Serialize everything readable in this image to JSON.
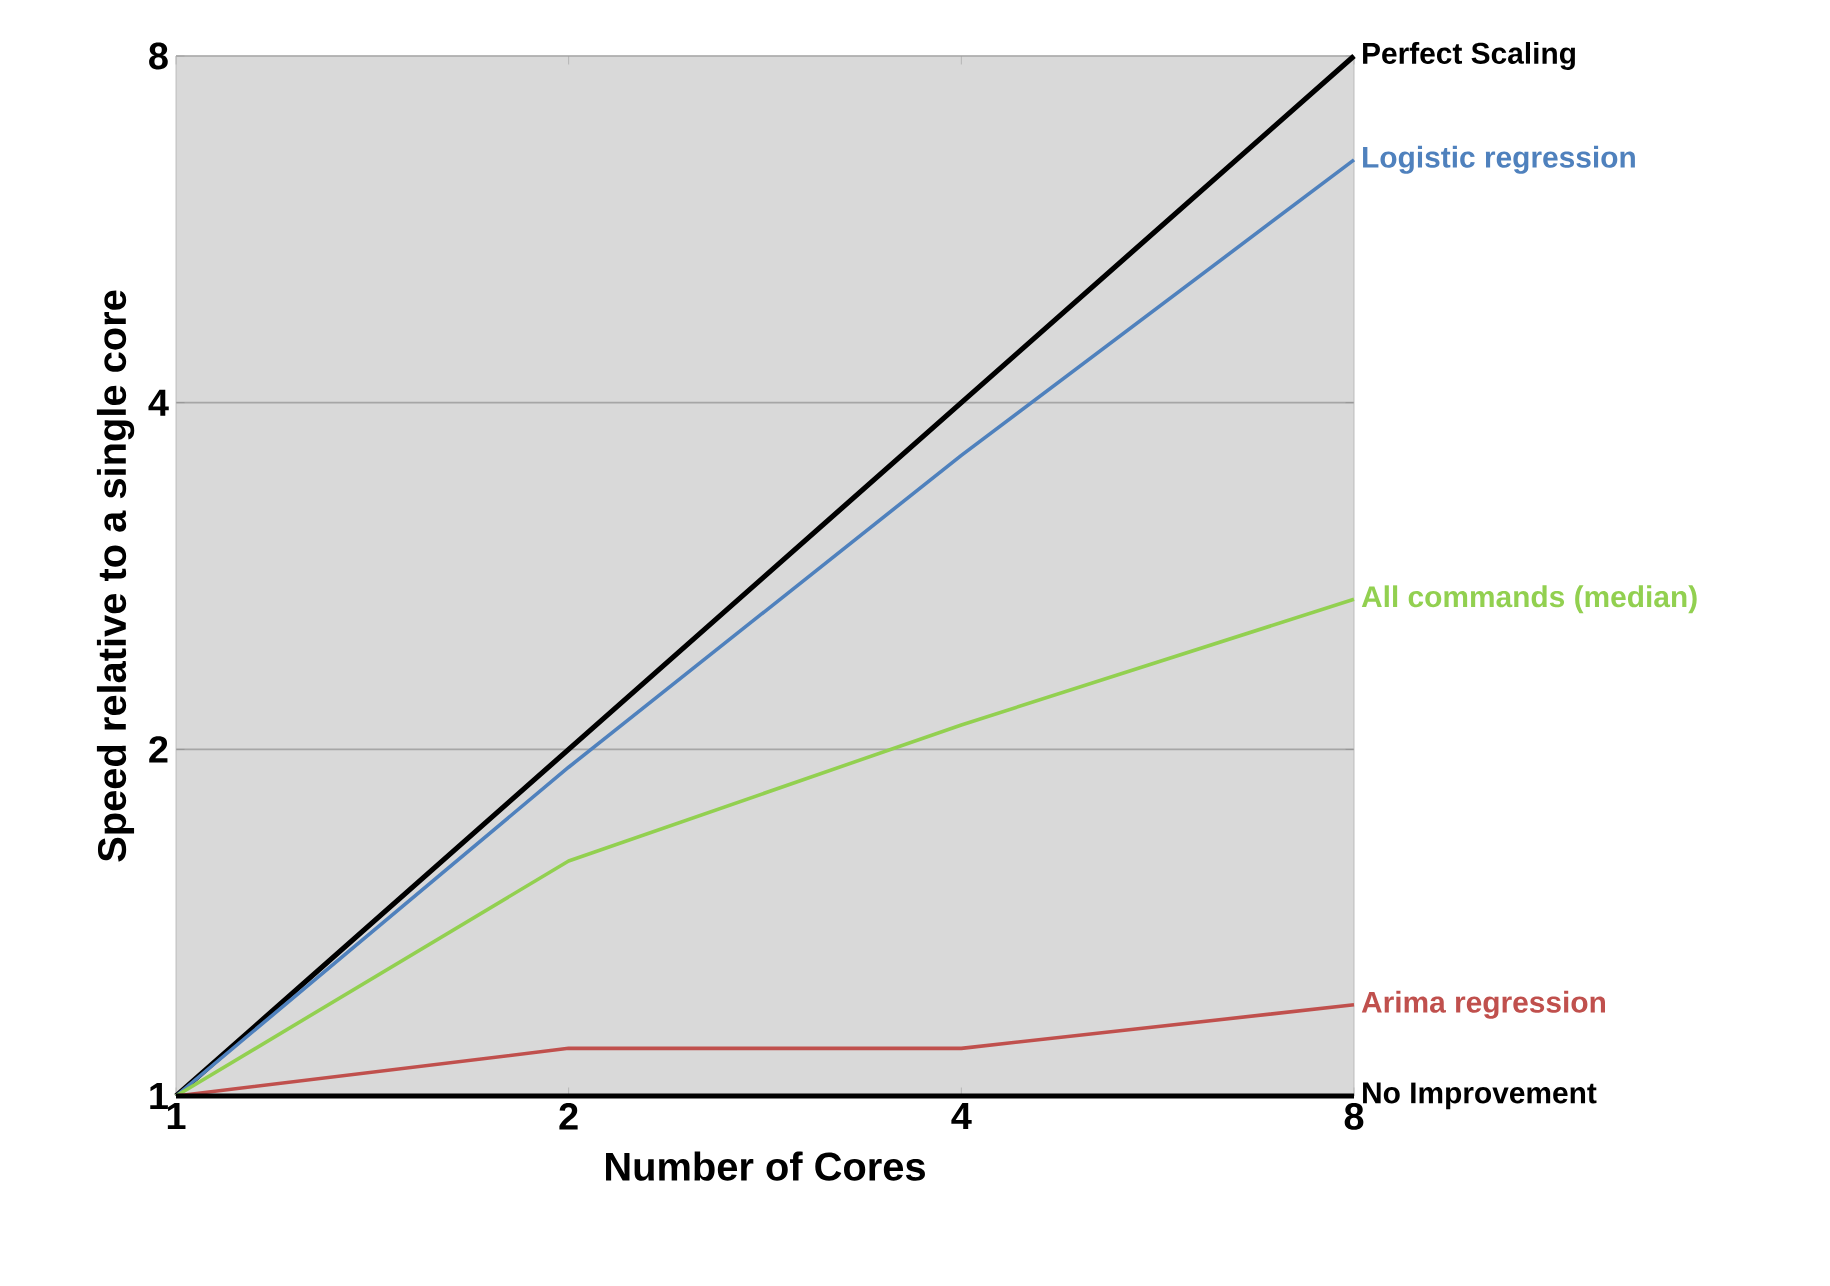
{
  "chart_data": {
    "type": "line",
    "xlabel": "Number of Cores",
    "ylabel": "Speed relative to a single core",
    "x": [
      1,
      2,
      4,
      8
    ],
    "log": "xy",
    "grid": "y",
    "legend": false,
    "marker": "none",
    "line_style": "solid",
    "xlim": [
      1,
      8
    ],
    "ylim": [
      1,
      8
    ],
    "xticks": [
      1,
      2,
      4,
      8
    ],
    "yticks": [
      1,
      2,
      4,
      8
    ],
    "series": [
      {
        "name": "Perfect Scaling",
        "color": "#000000",
        "values": [
          1,
          2,
          4,
          8
        ]
      },
      {
        "name": "Logistic regression",
        "color": "#4f81bd",
        "values": [
          1,
          1.93,
          3.6,
          6.5
        ]
      },
      {
        "name": "All commands (median)",
        "color": "#92d050",
        "values": [
          1,
          1.6,
          2.1,
          2.7
        ]
      },
      {
        "name": "Arima regression",
        "color": "#c0504d",
        "values": [
          1,
          1.1,
          1.1,
          1.2
        ]
      },
      {
        "name": "No Improvement",
        "color": "#000000",
        "values": [
          1,
          1,
          1,
          1
        ]
      }
    ]
  }
}
